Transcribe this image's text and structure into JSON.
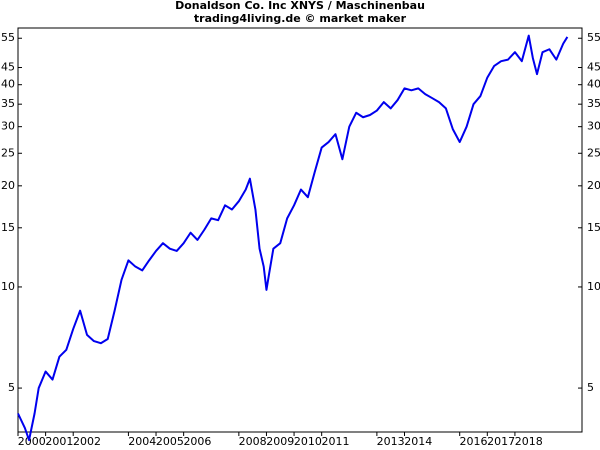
{
  "chart_data": {
    "type": "line",
    "title": "Donaldson Co. Inc XNYS / Maschinenbau",
    "subtitle": "trading4living.de © market maker",
    "log_y": true,
    "color": "#0000ee",
    "ylim": [
      3.7,
      59
    ],
    "yticks": [
      5,
      10,
      15,
      20,
      25,
      30,
      35,
      40,
      45,
      55
    ],
    "xlim": [
      2000,
      2020.43
    ],
    "xticks": [
      2000,
      2001,
      2002,
      2004,
      2005,
      2006,
      2008,
      2009,
      2010,
      2011,
      2013,
      2014,
      2016,
      2017,
      2018
    ],
    "x": [
      2000.0,
      2000.25,
      2000.4,
      2000.6,
      2000.75,
      2001.0,
      2001.25,
      2001.5,
      2001.75,
      2002.0,
      2002.25,
      2002.5,
      2002.75,
      2003.0,
      2003.25,
      2003.5,
      2003.75,
      2004.0,
      2004.25,
      2004.5,
      2004.75,
      2005.0,
      2005.25,
      2005.5,
      2005.75,
      2006.0,
      2006.25,
      2006.5,
      2006.75,
      2007.0,
      2007.25,
      2007.5,
      2007.75,
      2008.0,
      2008.25,
      2008.4,
      2008.6,
      2008.75,
      2008.9,
      2009.0,
      2009.1,
      2009.25,
      2009.5,
      2009.75,
      2010.0,
      2010.25,
      2010.5,
      2010.75,
      2011.0,
      2011.25,
      2011.5,
      2011.75,
      2012.0,
      2012.25,
      2012.5,
      2012.75,
      2013.0,
      2013.25,
      2013.5,
      2013.75,
      2014.0,
      2014.25,
      2014.5,
      2014.75,
      2015.0,
      2015.25,
      2015.5,
      2015.75,
      2016.0,
      2016.25,
      2016.5,
      2016.75,
      2017.0,
      2017.25,
      2017.5,
      2017.75,
      2018.0,
      2018.25,
      2018.5,
      2018.65,
      2018.8,
      2019.0,
      2019.25,
      2019.5,
      2019.75,
      2019.9
    ],
    "values": [
      4.2,
      3.8,
      3.5,
      4.2,
      5.0,
      5.6,
      5.3,
      6.2,
      6.5,
      7.5,
      8.5,
      7.2,
      6.9,
      6.8,
      7.0,
      8.5,
      10.5,
      12.0,
      11.5,
      11.2,
      12.0,
      12.8,
      13.5,
      13.0,
      12.8,
      13.5,
      14.5,
      13.8,
      14.8,
      16.0,
      15.8,
      17.5,
      17.0,
      18.0,
      19.5,
      21.0,
      17.0,
      13.0,
      11.5,
      9.8,
      11.0,
      13.0,
      13.5,
      16.0,
      17.5,
      19.5,
      18.5,
      22.0,
      26.0,
      27.0,
      28.5,
      24.0,
      30.0,
      33.0,
      32.0,
      32.5,
      33.5,
      35.5,
      34.0,
      36.0,
      39.0,
      38.5,
      39.0,
      37.5,
      36.5,
      35.5,
      34.0,
      29.5,
      27.0,
      30.0,
      35.0,
      37.0,
      42.0,
      45.5,
      47.0,
      47.5,
      50.0,
      47.0,
      56.0,
      48.0,
      43.0,
      50.0,
      51.0,
      47.5,
      53.0,
      55.5
    ]
  }
}
